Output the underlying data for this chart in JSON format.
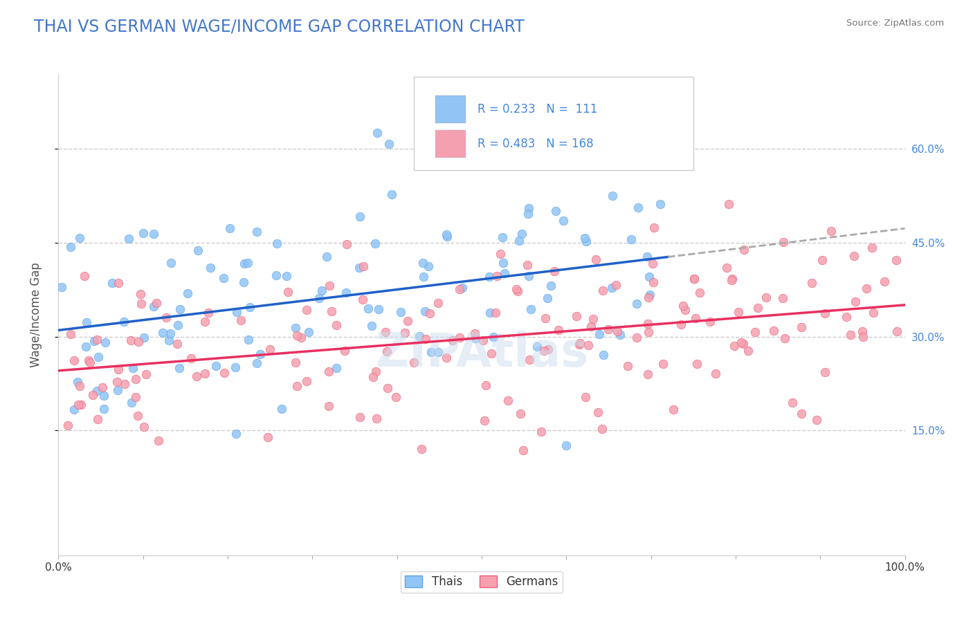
{
  "title": "THAI VS GERMAN WAGE/INCOME GAP CORRELATION CHART",
  "source_text": "Source: ZipAtlas.com",
  "xlabel": "",
  "ylabel": "Wage/Income Gap",
  "xlim": [
    0.0,
    1.0
  ],
  "ylim": [
    -0.05,
    0.72
  ],
  "xticks": [
    0.0,
    0.1,
    0.2,
    0.3,
    0.4,
    0.5,
    0.6,
    0.7,
    0.8,
    0.9,
    1.0
  ],
  "xtick_labels": [
    "0.0%",
    "",
    "",
    "",
    "",
    "",
    "",
    "",
    "",
    "",
    "100.0%"
  ],
  "ytick_vals": [
    0.15,
    0.3,
    0.45,
    0.6
  ],
  "ytick_labels": [
    "15.0%",
    "30.0%",
    "45.0%",
    "60.0%"
  ],
  "thai_R": 0.233,
  "thai_N": 111,
  "german_R": 0.483,
  "german_N": 168,
  "thai_color": "#92c5f5",
  "thai_color_dark": "#5ba3e8",
  "german_color": "#f5a0b0",
  "german_color_dark": "#e8607a",
  "thai_line_color": "#2060c8",
  "german_line_color": "#e83060",
  "legend_box_color": "#ddeeff",
  "title_color": "#4477cc",
  "title_fontsize": 17,
  "label_fontsize": 12,
  "tick_fontsize": 11,
  "marker_size": 9,
  "thai_slope": 0.145,
  "thai_intercept": 0.285,
  "german_slope": 0.105,
  "german_intercept": 0.225,
  "grid_color": "#cccccc",
  "background_color": "#ffffff",
  "right_ytick_color": "#4488dd"
}
